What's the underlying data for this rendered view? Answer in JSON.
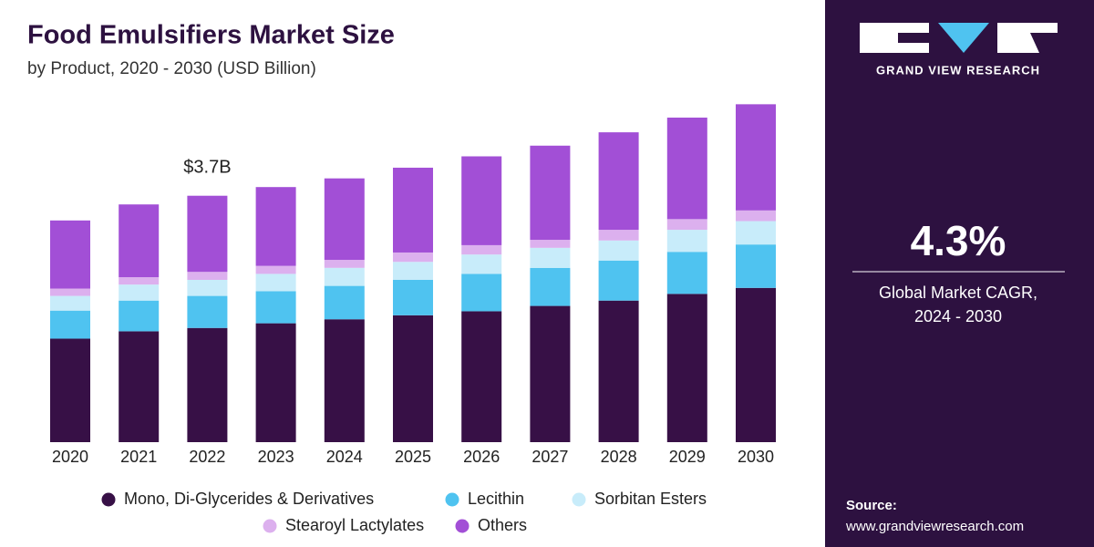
{
  "chart_data": {
    "type": "bar",
    "stacked": true,
    "title": "Food Emulsifiers Market Size",
    "subtitle": "by Product, 2020 - 2030 (USD Billion)",
    "categories": [
      "2020",
      "2021",
      "2022",
      "2023",
      "2024",
      "2025",
      "2026",
      "2027",
      "2028",
      "2029",
      "2030"
    ],
    "series": [
      {
        "name": "Mono, Di-Glycerides & Derivatives",
        "color": "#371046",
        "values": [
          1.55,
          1.66,
          1.71,
          1.78,
          1.84,
          1.9,
          1.96,
          2.04,
          2.12,
          2.22,
          2.31
        ]
      },
      {
        "name": "Lecithin",
        "color": "#4fc3f0",
        "values": [
          0.42,
          0.46,
          0.48,
          0.48,
          0.5,
          0.53,
          0.56,
          0.57,
          0.6,
          0.63,
          0.65
        ]
      },
      {
        "name": "Sorbitan Esters",
        "color": "#c8ecfa",
        "values": [
          0.22,
          0.24,
          0.24,
          0.26,
          0.27,
          0.27,
          0.29,
          0.3,
          0.3,
          0.33,
          0.35
        ]
      },
      {
        "name": "Stearoyl Lactylates",
        "color": "#dcb0ee",
        "values": [
          0.11,
          0.11,
          0.12,
          0.12,
          0.12,
          0.14,
          0.14,
          0.12,
          0.16,
          0.16,
          0.16
        ]
      },
      {
        "name": "Others",
        "color": "#a24fd6",
        "values": [
          1.02,
          1.09,
          1.14,
          1.18,
          1.22,
          1.27,
          1.33,
          1.41,
          1.46,
          1.52,
          1.59
        ]
      }
    ],
    "annotation": {
      "text": "$3.7B",
      "value": 3.7,
      "category": "2022"
    },
    "grid": false
  },
  "panel": {
    "brand": "GRAND VIEW RESEARCH",
    "cagr": "4.3%",
    "cagr_label": "Global Market CAGR,",
    "cagr_period": "2024 - 2030",
    "source_label": "Source:",
    "source": "www.grandviewresearch.com"
  }
}
